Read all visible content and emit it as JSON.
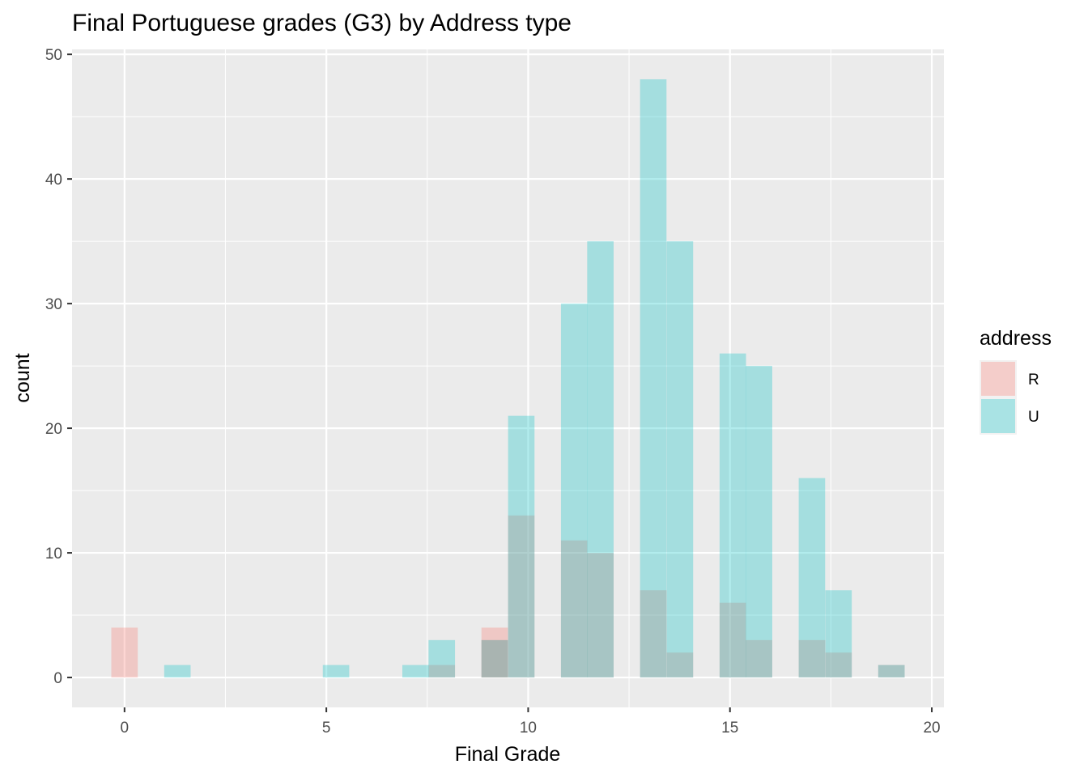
{
  "chart_data": {
    "type": "bar",
    "title": "Final Portuguese grades (G3) by Address type",
    "xlabel": "Final Grade",
    "ylabel": "count",
    "xlim": [
      -1.3,
      20.3
    ],
    "ylim": [
      -2.4,
      50.4
    ],
    "x_ticks": [
      0,
      5,
      10,
      15,
      20
    ],
    "y_ticks": [
      0,
      10,
      20,
      30,
      40,
      50
    ],
    "bin_width": 0.655,
    "grid": true,
    "legend_position": "right",
    "legend_title": "address",
    "series": [
      {
        "name": "R",
        "color": "#F8766D",
        "bins": [
          {
            "x": 0.0,
            "count": 4
          },
          {
            "x": 7.86,
            "count": 1
          },
          {
            "x": 9.17,
            "count": 3
          },
          {
            "x": 9.17,
            "count": 4
          },
          {
            "x": 9.83,
            "count": 13
          },
          {
            "x": 11.14,
            "count": 11
          },
          {
            "x": 11.79,
            "count": 10
          },
          {
            "x": 13.1,
            "count": 7
          },
          {
            "x": 13.76,
            "count": 2
          },
          {
            "x": 15.07,
            "count": 6
          },
          {
            "x": 15.72,
            "count": 3
          },
          {
            "x": 17.03,
            "count": 3
          },
          {
            "x": 17.69,
            "count": 2
          },
          {
            "x": 19.0,
            "count": 1
          }
        ]
      },
      {
        "name": "U",
        "color": "#00BFC4",
        "bins": [
          {
            "x": 1.31,
            "count": 1
          },
          {
            "x": 5.24,
            "count": 1
          },
          {
            "x": 7.21,
            "count": 1
          },
          {
            "x": 7.86,
            "count": 3
          },
          {
            "x": 9.17,
            "count": 3
          },
          {
            "x": 9.83,
            "count": 21
          },
          {
            "x": 11.14,
            "count": 30
          },
          {
            "x": 11.79,
            "count": 35
          },
          {
            "x": 13.1,
            "count": 48
          },
          {
            "x": 13.76,
            "count": 35
          },
          {
            "x": 15.07,
            "count": 26
          },
          {
            "x": 15.72,
            "count": 25
          },
          {
            "x": 17.03,
            "count": 16
          },
          {
            "x": 17.69,
            "count": 7
          },
          {
            "x": 19.0,
            "count": 1
          }
        ]
      }
    ]
  }
}
